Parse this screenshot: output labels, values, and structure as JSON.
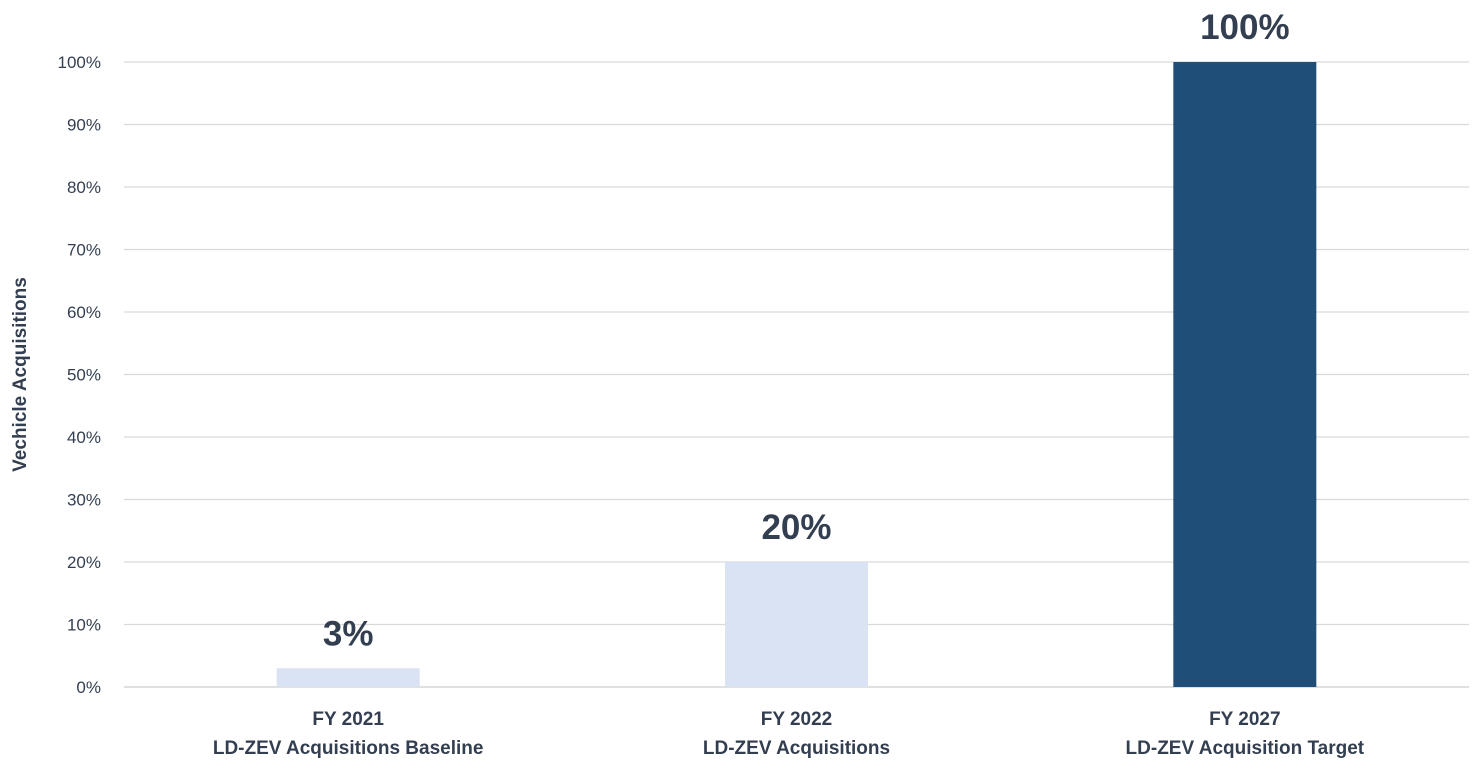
{
  "chart_data": {
    "type": "bar",
    "title": "",
    "xlabel": "",
    "ylabel": "Vechicle Acquisitions",
    "ylim": [
      0,
      100
    ],
    "y_ticks": [
      0,
      10,
      20,
      30,
      40,
      50,
      60,
      70,
      80,
      90,
      100
    ],
    "y_tick_format": "percent",
    "grid": true,
    "legend": "none",
    "categories": [
      {
        "line1": "FY 2021",
        "line2": "LD-ZEV Acquisitions Baseline"
      },
      {
        "line1": "FY 2022",
        "line2": "LD-ZEV Acquisitions"
      },
      {
        "line1": "FY 2027",
        "line2": "LD-ZEV Acquisition Target"
      }
    ],
    "values": [
      3,
      20,
      100
    ],
    "data_labels": [
      "3%",
      "20%",
      "100%"
    ],
    "bar_colors": [
      "#dae3f3",
      "#dae3f3",
      "#1f4e79"
    ],
    "label_color": "#333f50",
    "axis_text_color": "#333f50",
    "grid_color": "#d9d9d9"
  }
}
